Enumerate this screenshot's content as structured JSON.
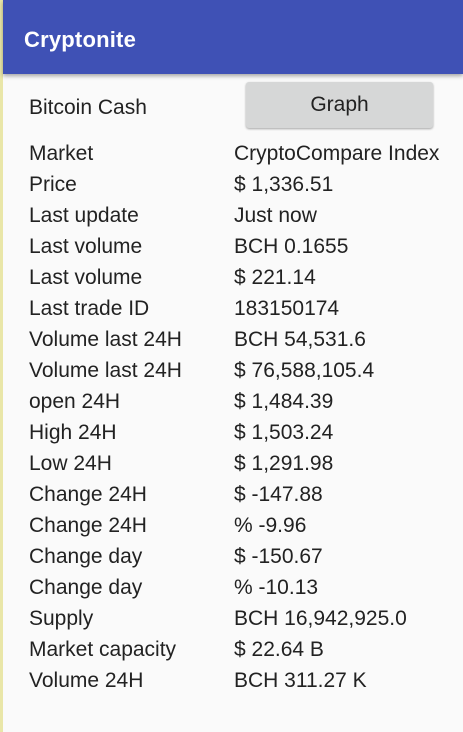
{
  "app_bar": {
    "title": "Cryptonite"
  },
  "coin": {
    "name": "Bitcoin Cash",
    "graph_button_label": "Graph"
  },
  "details": [
    {
      "label": "Market",
      "value": "CryptoCompare Index"
    },
    {
      "label": "Price",
      "value": "$ 1,336.51"
    },
    {
      "label": "Last update",
      "value": "Just now"
    },
    {
      "label": "Last volume",
      "value": "BCH 0.1655"
    },
    {
      "label": "Last volume",
      "value": "$ 221.14"
    },
    {
      "label": "Last trade ID",
      "value": "183150174"
    },
    {
      "label": "Volume last 24H",
      "value": "BCH 54,531.6"
    },
    {
      "label": "Volume last 24H",
      "value": "$ 76,588,105.4"
    },
    {
      "label": "open 24H",
      "value": "$ 1,484.39"
    },
    {
      "label": "High 24H",
      "value": "$ 1,503.24"
    },
    {
      "label": "Low 24H",
      "value": "$ 1,291.98"
    },
    {
      "label": "Change 24H",
      "value": "$ -147.88"
    },
    {
      "label": "Change 24H",
      "value": "% -9.96"
    },
    {
      "label": "Change day",
      "value": "$ -150.67"
    },
    {
      "label": "Change day",
      "value": "% -10.13"
    },
    {
      "label": "Supply",
      "value": "BCH 16,942,925.0"
    },
    {
      "label": "Market capacity",
      "value": "$ 22.64 B"
    },
    {
      "label": "Volume 24H",
      "value": "BCH 311.27 K"
    }
  ]
}
